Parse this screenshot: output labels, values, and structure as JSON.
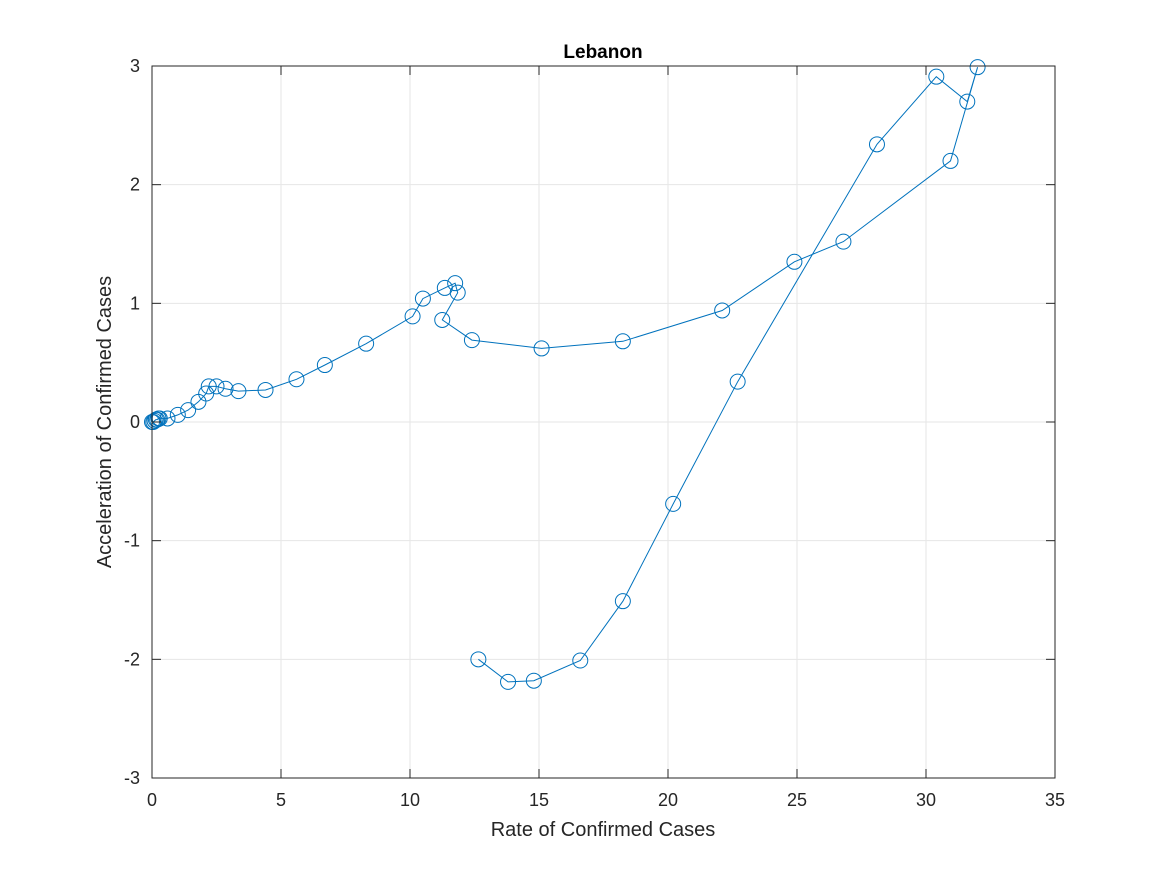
{
  "chart_data": {
    "type": "line",
    "title": "Lebanon",
    "xlabel": "Rate of Confirmed Cases",
    "ylabel": "Acceleration of Confirmed Cases",
    "xlim": [
      0,
      35
    ],
    "ylim": [
      -3,
      3
    ],
    "xticks": [
      0,
      5,
      10,
      15,
      20,
      25,
      30,
      35
    ],
    "yticks": [
      -3,
      -2,
      -1,
      0,
      1,
      2,
      3
    ],
    "xtick_labels": [
      "0",
      "5",
      "10",
      "15",
      "20",
      "25",
      "30",
      "35"
    ],
    "ytick_labels": [
      "-3",
      "-2",
      "-1",
      "0",
      "1",
      "2",
      "3"
    ],
    "grid": true,
    "marker": "circle",
    "line_color": "#0072BD",
    "series": [
      {
        "x": [
          0,
          0.05,
          0.1,
          0.15,
          0.2,
          0.25,
          0.3,
          0.6,
          1.0,
          1.4,
          1.8,
          2.1,
          2.2,
          2.5,
          2.85,
          3.35,
          4.4,
          5.6,
          6.7,
          8.3,
          10.1,
          10.5,
          11.35,
          11.75,
          11.85,
          11.25,
          12.4,
          15.1,
          18.25,
          22.1,
          24.9,
          26.8,
          30.95,
          32.0,
          31.6,
          30.4,
          28.1,
          22.7,
          20.2,
          18.25,
          16.6,
          14.8,
          13.8,
          12.65
        ],
        "y": [
          0,
          0,
          0.01,
          0.02,
          0.02,
          0.03,
          0.03,
          0.03,
          0.06,
          0.1,
          0.17,
          0.24,
          0.3,
          0.3,
          0.28,
          0.26,
          0.27,
          0.36,
          0.48,
          0.66,
          0.89,
          1.04,
          1.13,
          1.17,
          1.09,
          0.86,
          0.69,
          0.62,
          0.68,
          0.94,
          1.35,
          1.52,
          2.2,
          2.99,
          2.7,
          2.91,
          2.34,
          0.34,
          -0.69,
          -1.51,
          -2.01,
          -2.18,
          -2.19,
          -2.0
        ]
      }
    ]
  }
}
